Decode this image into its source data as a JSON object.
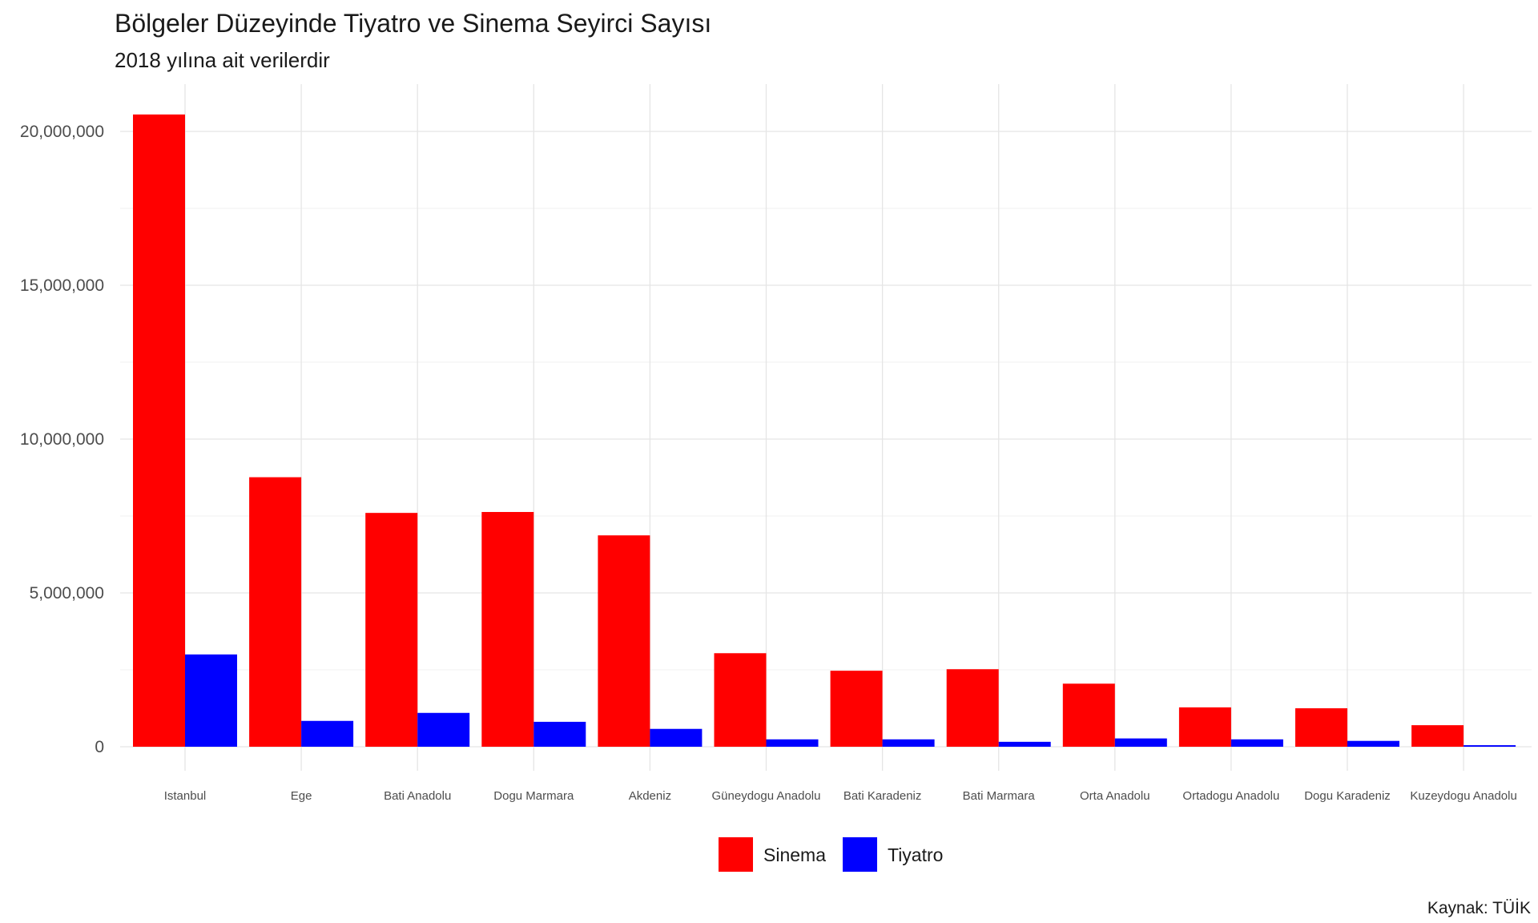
{
  "chart_data": {
    "type": "bar",
    "title": "Bölgeler Düzeyinde Tiyatro ve Sinema Seyirci Sayısı",
    "subtitle": "2018 yılına ait verilerdir",
    "caption": "Kaynak: TÜİK",
    "xlabel": "",
    "ylabel": "",
    "ylim": [
      0,
      21500000
    ],
    "yticks": [
      0,
      5000000,
      10000000,
      15000000,
      20000000
    ],
    "ytick_labels": [
      "0",
      "5,000,000",
      "10,000,000",
      "15,000,000",
      "20,000,000"
    ],
    "grid": true,
    "legend_position": "bottom",
    "categories": [
      "Istanbul",
      "Ege",
      "Bati Anadolu",
      "Dogu Marmara",
      "Akdeniz",
      "Güneydogu Anadolu",
      "Bati Karadeniz",
      "Bati Marmara",
      "Orta Anadolu",
      "Ortadogu Anadolu",
      "Dogu Karadeniz",
      "Kuzeydogu Anadolu"
    ],
    "series": [
      {
        "name": "Sinema",
        "color": "#ff0000",
        "values": [
          20550000,
          8760000,
          7600000,
          7630000,
          6870000,
          3040000,
          2470000,
          2520000,
          2050000,
          1280000,
          1250000,
          700000
        ]
      },
      {
        "name": "Tiyatro",
        "color": "#0000ff",
        "values": [
          3000000,
          840000,
          1100000,
          810000,
          580000,
          240000,
          240000,
          160000,
          270000,
          240000,
          190000,
          50000
        ]
      }
    ]
  }
}
